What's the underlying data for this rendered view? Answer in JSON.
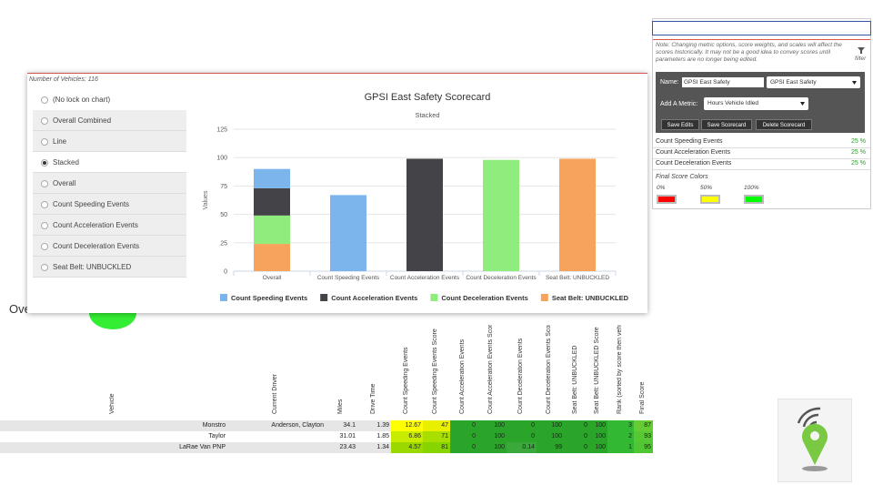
{
  "background_heading": "Ove",
  "popup": {
    "vehicle_count": "Number of Vehicles: 116",
    "chart_options": [
      "(No lock on chart)",
      "Overall Combined",
      "Line",
      "Stacked",
      "Overall",
      "Count Speeding Events",
      "Count Acceleration Events",
      "Count Deceleration Events",
      "Seat Belt: UNBUCKLED"
    ],
    "selected_option": 3
  },
  "chart_data": {
    "type": "bar",
    "stacked": true,
    "title": "GPSI East Safety Scorecard",
    "subtitle": "Stacked",
    "y_label": "Values",
    "categories": [
      "Overall",
      "Count Speeding Events",
      "Count Acceleration Events",
      "Count Deceleration Events",
      "Seat Belt: UNBUCKLED"
    ],
    "series": [
      {
        "name": "Count Speeding Events",
        "color": "#7cb5ec",
        "values": [
          17,
          67,
          null,
          null,
          null
        ]
      },
      {
        "name": "Count Acceleration Events",
        "color": "#434348",
        "values": [
          24,
          null,
          99,
          null,
          null
        ]
      },
      {
        "name": "Count Deceleration Events",
        "color": "#90ed7d",
        "values": [
          25,
          null,
          null,
          98,
          null
        ]
      },
      {
        "name": "Seat Belt: UNBUCKLED",
        "color": "#f7a35c",
        "values": [
          24,
          null,
          null,
          null,
          99
        ]
      }
    ],
    "ylim": [
      0,
      125
    ],
    "yticks": [
      0,
      25,
      50,
      75,
      100,
      125
    ],
    "grid": true
  },
  "scorecard_panel": {
    "note": "Note: Changing metric options, score weights, and scales will affect the scores historically. It may not be a good idea to convey scores until parameters are no longer being edited.",
    "filter": "filter",
    "name_label": "Name:",
    "name_value": "GPSI East Safety",
    "scorecard_select": "GPSI East Safety",
    "add_metric_label": "Add A Metric:",
    "add_metric_select": "Hours Vehicle Idled",
    "buttons": [
      "Save Edits",
      "Save Scorecard",
      "Delete Scorecard"
    ],
    "metrics": [
      {
        "name": "Count Speeding Events",
        "weight": "25 %"
      },
      {
        "name": "Count Acceleration Events",
        "weight": "25 %"
      },
      {
        "name": "Count Deceleration Events",
        "weight": "25 %"
      }
    ],
    "colors_title": "Final Score Colors",
    "color_stops": [
      {
        "label": "0%",
        "color": "#ff0000"
      },
      {
        "label": "50%",
        "color": "#ffff00"
      },
      {
        "label": "100%",
        "color": "#00ff00"
      }
    ]
  },
  "table": {
    "headers": [
      "Vehicle",
      "Current Driver",
      "Miles",
      "Drive Time",
      "Count Speeding Events",
      "Count Speeding Events Score",
      "Count Acceleration Events",
      "Count Acceleration Events Score",
      "Count Deceleration Events",
      "Count Deceleration Events Score",
      "Seat Belt: UNBUCKLED",
      "Seat Belt: UNBUCKLED Score",
      "Rank (sorted by score then vehi",
      "Final Score"
    ],
    "rows": [
      [
        "Monstro",
        "Anderson, Clayton",
        34.1,
        1.39,
        12.67,
        47,
        0,
        100,
        0,
        100,
        0,
        100,
        3,
        87
      ],
      [
        "Taylor",
        null,
        31.01,
        1.85,
        6.86,
        71,
        0,
        100,
        0,
        100,
        0,
        100,
        2,
        93
      ],
      [
        "LaRae Van PNP",
        null,
        23.43,
        1.34,
        4.57,
        81,
        0,
        100,
        0.14,
        99,
        0,
        100,
        1,
        95
      ]
    ]
  }
}
